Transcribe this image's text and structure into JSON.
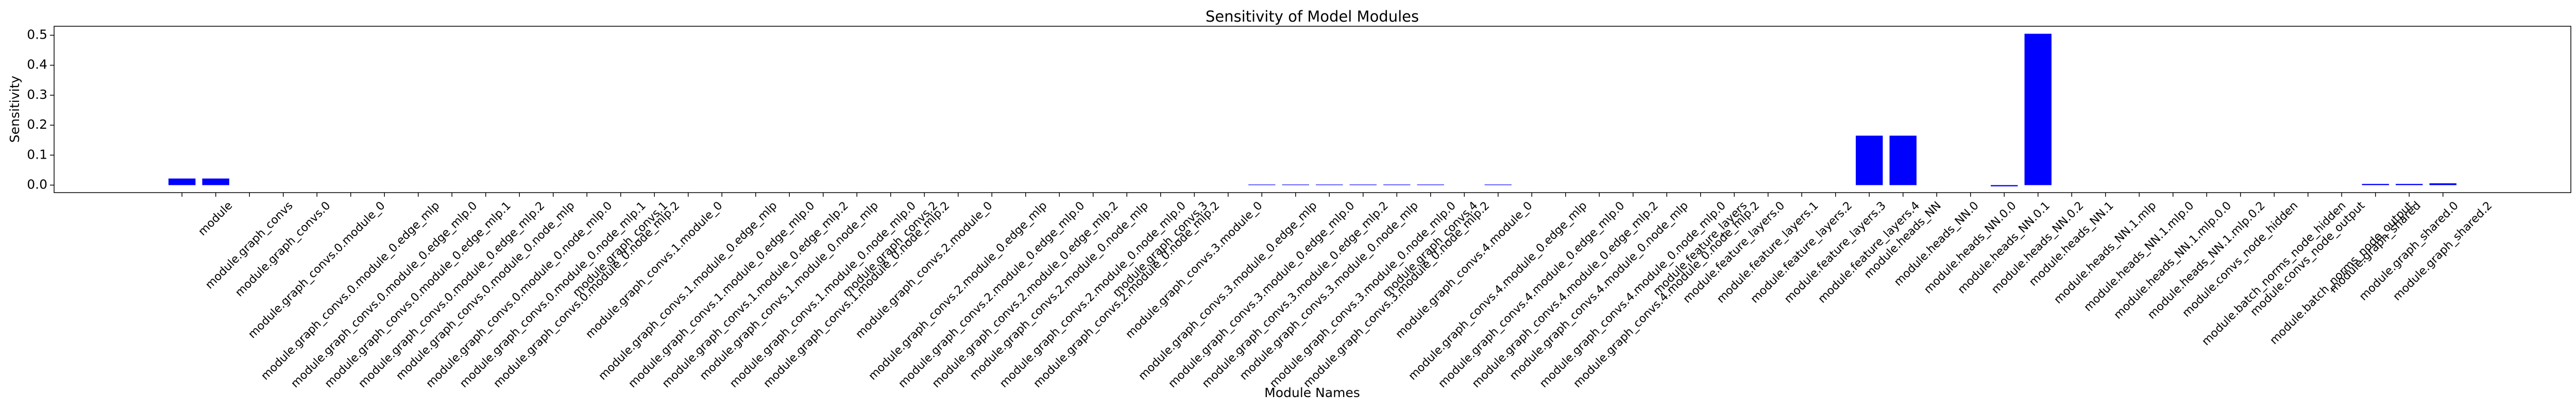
{
  "chart_data": {
    "type": "bar",
    "title": "Sensitivity of Model Modules",
    "x_label": "Module Names",
    "y_label": "Sensitivity",
    "color": "#0000ff",
    "categories": [
      null,
      "module",
      "module.graph_convs",
      "module.graph_convs.0",
      "module.graph_convs.0.module_0",
      "module.graph_convs.0.module_0.edge_mlp",
      "module.graph_convs.0.module_0.edge_mlp.0",
      "module.graph_convs.0.module_0.edge_mlp.1",
      "module.graph_convs.0.module_0.edge_mlp.2",
      "module.graph_convs.0.module_0.node_mlp",
      "module.graph_convs.0.module_0.node_mlp.0",
      "module.graph_convs.0.module_0.node_mlp.1",
      "module.graph_convs.0.module_0.node_mlp.2",
      "module.graph_convs.1",
      "module.graph_convs.1.module_0",
      "module.graph_convs.1.module_0.edge_mlp",
      "module.graph_convs.1.module_0.edge_mlp.0",
      "module.graph_convs.1.module_0.edge_mlp.2",
      "module.graph_convs.1.module_0.node_mlp",
      "module.graph_convs.1.module_0.node_mlp.0",
      "module.graph_convs.1.module_0.node_mlp.2",
      "module.graph_convs.2",
      "module.graph_convs.2.module_0",
      "module.graph_convs.2.module_0.edge_mlp",
      "module.graph_convs.2.module_0.edge_mlp.0",
      "module.graph_convs.2.module_0.edge_mlp.2",
      "module.graph_convs.2.module_0.node_mlp",
      "module.graph_convs.2.module_0.node_mlp.0",
      "module.graph_convs.2.module_0.node_mlp.2",
      "module.graph_convs.3",
      "module.graph_convs.3.module_0",
      "module.graph_convs.3.module_0.edge_mlp",
      "module.graph_convs.3.module_0.edge_mlp.0",
      "module.graph_convs.3.module_0.edge_mlp.2",
      "module.graph_convs.3.module_0.node_mlp",
      "module.graph_convs.3.module_0.node_mlp.0",
      "module.graph_convs.3.module_0.node_mlp.2",
      "module.graph_convs.4",
      "module.graph_convs.4.module_0",
      "module.graph_convs.4.module_0.edge_mlp",
      "module.graph_convs.4.module_0.edge_mlp.0",
      "module.graph_convs.4.module_0.edge_mlp.2",
      "module.graph_convs.4.module_0.node_mlp",
      "module.graph_convs.4.module_0.node_mlp.0",
      "module.graph_convs.4.module_0.node_mlp.2",
      "module.feature_layers",
      "module.feature_layers.0",
      "module.feature_layers.1",
      "module.feature_layers.2",
      "module.feature_layers.3",
      "module.feature_layers.4",
      "module.heads_NN",
      "module.heads_NN.0",
      "module.heads_NN.0.0",
      "module.heads_NN.0.1",
      "module.heads_NN.0.2",
      "module.heads_NN.1",
      "module.heads_NN.1.mlp",
      "module.heads_NN.1.mlp.0",
      "module.heads_NN.1.mlp.0.0",
      "module.heads_NN.1.mlp.0.2",
      "module.convs_node_hidden",
      "module.batch_norms_node_hidden",
      "module.convs_node_output",
      "module.batch_norms_node_output",
      "module.graph_shared",
      "module.graph_shared.0",
      "module.graph_shared.2"
    ],
    "values": [
      0.022,
      0.022,
      0,
      0,
      0,
      0,
      0,
      0,
      0,
      0,
      0,
      0,
      0,
      0,
      0,
      0,
      0,
      0,
      0,
      0,
      0,
      0,
      0,
      0,
      0,
      0,
      0,
      0,
      0,
      0,
      0,
      0,
      0.002,
      0.002,
      0.002,
      0.002,
      0.002,
      0.002,
      0,
      0.002,
      0,
      0,
      0,
      0,
      0,
      0,
      0,
      0,
      0,
      0,
      0.165,
      0.165,
      0,
      0,
      -0.004,
      0.505,
      0,
      0,
      0,
      0,
      0,
      0,
      0,
      0,
      0,
      0.004,
      0.004,
      0.006
    ],
    "ylim": [
      -0.025,
      0.53
    ],
    "yticks": [
      {
        "value": 0,
        "label": "0.0"
      },
      0.1,
      0.2,
      0.3,
      0.4,
      0.5
    ]
  }
}
